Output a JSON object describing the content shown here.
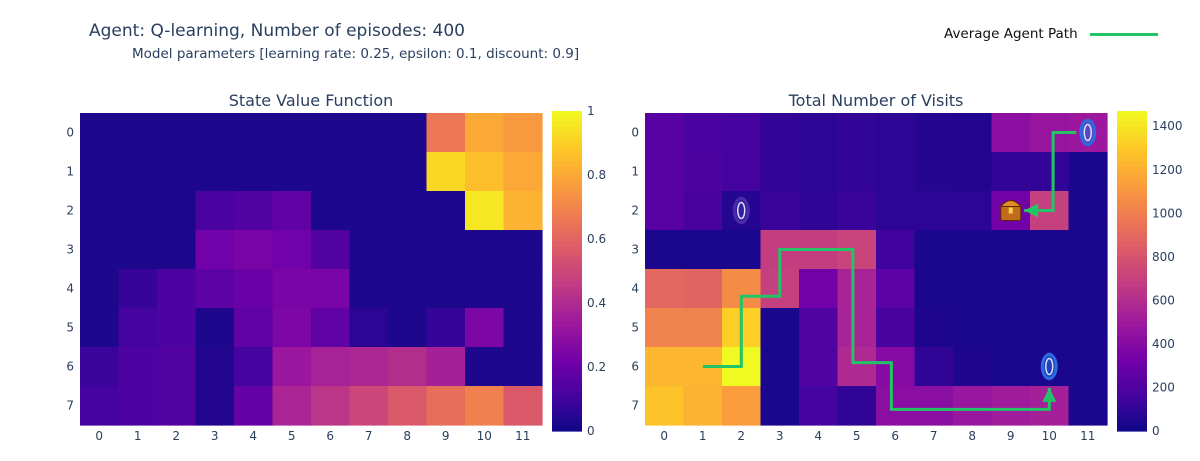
{
  "header": {
    "title": "Agent: Q-learning, Number of episodes: 400",
    "subtitle": "Model parameters [learning rate: 0.25, epsilon: 0.1, discount: 0.9]"
  },
  "legend": {
    "label": "Average Agent Path",
    "color": "#22c466"
  },
  "colorscale": [
    "#0d0887",
    "#46039f",
    "#7201a8",
    "#9c179e",
    "#bd3786",
    "#d8576b",
    "#ed7953",
    "#fb9f3a",
    "#fdca26",
    "#f0f921"
  ],
  "chart_data": [
    {
      "type": "heatmap",
      "title": "State Value Function",
      "x_ticks": [
        "0",
        "1",
        "2",
        "3",
        "4",
        "5",
        "6",
        "7",
        "8",
        "9",
        "10",
        "11"
      ],
      "y_ticks": [
        "0",
        "1",
        "2",
        "3",
        "4",
        "5",
        "6",
        "7"
      ],
      "zmin": 0,
      "zmax": 1,
      "colorbar_ticks": [
        0,
        0.2,
        0.4,
        0.6,
        0.8,
        1
      ],
      "colorbar_labels": [
        "0",
        "0.2",
        "0.4",
        "0.6",
        "0.8",
        "1"
      ],
      "z": [
        [
          0.03,
          0.03,
          0.03,
          0.03,
          0.03,
          0.03,
          0.03,
          0.03,
          0.03,
          0.66,
          0.8,
          0.76
        ],
        [
          0.03,
          0.03,
          0.03,
          0.03,
          0.03,
          0.03,
          0.03,
          0.03,
          0.03,
          0.92,
          0.86,
          0.8
        ],
        [
          0.03,
          0.03,
          0.03,
          0.12,
          0.14,
          0.18,
          0.03,
          0.03,
          0.03,
          0.03,
          0.96,
          0.83
        ],
        [
          0.03,
          0.03,
          0.03,
          0.22,
          0.24,
          0.22,
          0.14,
          0.03,
          0.03,
          0.03,
          0.03,
          0.03
        ],
        [
          0.03,
          0.08,
          0.13,
          0.17,
          0.2,
          0.24,
          0.24,
          0.03,
          0.03,
          0.03,
          0.03,
          0.03
        ],
        [
          0.03,
          0.11,
          0.13,
          0.03,
          0.18,
          0.25,
          0.18,
          0.06,
          0.03,
          0.08,
          0.25,
          0.03
        ],
        [
          0.09,
          0.13,
          0.14,
          0.04,
          0.11,
          0.33,
          0.37,
          0.39,
          0.41,
          0.36,
          0.03,
          0.03
        ],
        [
          0.11,
          0.13,
          0.14,
          0.04,
          0.19,
          0.38,
          0.44,
          0.5,
          0.56,
          0.63,
          0.69,
          0.56
        ]
      ]
    },
    {
      "type": "heatmap",
      "title": "Total Number of Visits",
      "x_ticks": [
        "0",
        "1",
        "2",
        "3",
        "4",
        "5",
        "6",
        "7",
        "8",
        "9",
        "10",
        "11"
      ],
      "y_ticks": [
        "0",
        "1",
        "2",
        "3",
        "4",
        "5",
        "6",
        "7"
      ],
      "zmin": 0,
      "zmax": 1470,
      "colorbar_ticks": [
        0,
        200,
        400,
        600,
        800,
        1000,
        1200,
        1400
      ],
      "colorbar_labels": [
        "0",
        "200",
        "400",
        "600",
        "800",
        "1000",
        "1200",
        "1400"
      ],
      "z": [
        [
          230,
          180,
          160,
          110,
          90,
          110,
          90,
          70,
          60,
          430,
          470,
          490
        ],
        [
          230,
          190,
          160,
          110,
          90,
          110,
          90,
          70,
          60,
          110,
          110,
          40
        ],
        [
          230,
          170,
          70,
          130,
          100,
          130,
          90,
          90,
          90,
          330,
          700,
          40
        ],
        [
          40,
          40,
          40,
          690,
          690,
          720,
          150,
          40,
          40,
          40,
          40,
          40
        ],
        [
          900,
          880,
          1060,
          700,
          330,
          550,
          250,
          40,
          40,
          40,
          40,
          40
        ],
        [
          1020,
          1020,
          1320,
          40,
          200,
          550,
          170,
          50,
          40,
          40,
          40,
          40
        ],
        [
          1230,
          1230,
          1470,
          40,
          200,
          580,
          400,
          100,
          50,
          40,
          40,
          40
        ],
        [
          1280,
          1220,
          1130,
          40,
          160,
          100,
          420,
          420,
          480,
          510,
          530,
          40
        ]
      ],
      "agent_path": [
        [
          1,
          6
        ],
        [
          2,
          6
        ],
        [
          2,
          4.2
        ],
        [
          3,
          4.2
        ],
        [
          3,
          3
        ],
        [
          4.9,
          3
        ],
        [
          4.9,
          5.9
        ],
        [
          5.9,
          5.9
        ],
        [
          5.9,
          7.1
        ],
        [
          10,
          7.1
        ],
        [
          10,
          6.55
        ]
      ],
      "return_path": [
        [
          10.7,
          0
        ],
        [
          10.1,
          0
        ],
        [
          10.1,
          2
        ],
        [
          9.35,
          2
        ]
      ],
      "markers": [
        {
          "icon": "portal-icon",
          "x": 2,
          "y": 2,
          "color": "#4a2aa8"
        },
        {
          "icon": "portal-icon",
          "x": 11,
          "y": 0,
          "color": "#2a6ce0"
        },
        {
          "icon": "portal-icon",
          "x": 10,
          "y": 6,
          "color": "#2a6ce0"
        },
        {
          "icon": "treasure-chest-icon",
          "x": 9,
          "y": 2,
          "color": "#c46a1c"
        }
      ]
    }
  ]
}
